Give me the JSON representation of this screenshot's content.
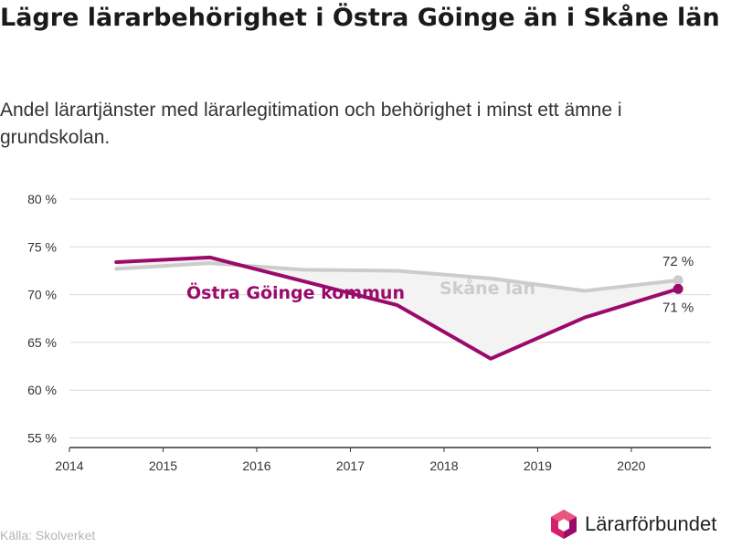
{
  "title": "Lägre lärarbehörighet i Östra Göinge än i Skåne län",
  "subtitle": "Andel lärartjänster med lärarlegitimation och behörighet i minst ett ämne i grundskolan.",
  "source": "Källa: Skolverket",
  "brand": {
    "name": "Lärarförbundet",
    "icon": "hexagon-logo-icon"
  },
  "colors": {
    "kommun": "#9b0a6a",
    "lan": "#cccccc",
    "fill": "#f3f3f3",
    "grid": "#dcdcdc",
    "axis": "#333333"
  },
  "chart_data": {
    "type": "line",
    "x_ticks": [
      2014,
      2015,
      2016,
      2017,
      2018,
      2019,
      2020
    ],
    "xlim": [
      2014,
      2020.85
    ],
    "y_ticks": [
      "55 %",
      "60 %",
      "65 %",
      "70 %",
      "75 %",
      "80 %"
    ],
    "y_tick_values": [
      55,
      60,
      65,
      70,
      75,
      80
    ],
    "ylim": [
      54,
      80
    ],
    "grid": true,
    "series": [
      {
        "name": "Skåne län",
        "x": [
          2014.5,
          2015.5,
          2016.5,
          2017.5,
          2018.5,
          2019.5,
          2020.5
        ],
        "values": [
          72.7,
          73.3,
          72.6,
          72.5,
          71.7,
          70.4,
          71.5
        ],
        "end_label": "72 %"
      },
      {
        "name": "Östra Göinge kommun",
        "x": [
          2014.5,
          2015.5,
          2016.5,
          2017.5,
          2018.5,
          2019.5,
          2020.5
        ],
        "values": [
          73.4,
          73.9,
          71.4,
          68.9,
          63.3,
          67.6,
          70.6
        ],
        "end_label": "71 %"
      }
    ]
  }
}
